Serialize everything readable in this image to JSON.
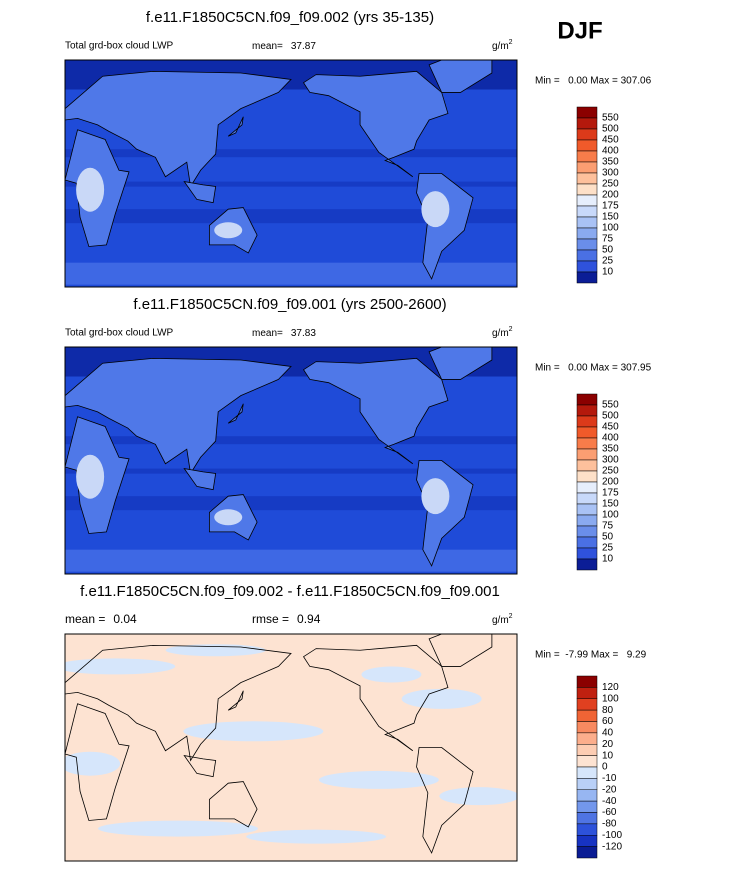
{
  "header": {
    "season": "DJF"
  },
  "panels": [
    {
      "title": "f.e11.F1850C5CN.f09_f09.002 (yrs 35-135)",
      "field": "Total grd-box cloud LWP",
      "stat1_label": "mean=",
      "stat1": "37.87",
      "units": "g/m",
      "units_sup": "2",
      "range": "Min =   0.00 Max = 307.06",
      "style": "lwp",
      "colorbar": {
        "labels": [
          "550",
          "500",
          "450",
          "400",
          "350",
          "300",
          "250",
          "200",
          "175",
          "150",
          "100",
          "75",
          "50",
          "25",
          "10"
        ],
        "colors": [
          "#8b0000",
          "#b4190c",
          "#dc3a1a",
          "#f05a2a",
          "#f87c4a",
          "#fb9e72",
          "#fdc09c",
          "#fde0c8",
          "#e6eefc",
          "#c8d9fa",
          "#a9c2f5",
          "#8aaaf0",
          "#6a8eea",
          "#4a70e4",
          "#2f52dc",
          "#0b1d96"
        ]
      }
    },
    {
      "title": "f.e11.F1850C5CN.f09_f09.001 (yrs 2500-2600)",
      "field": "Total grd-box cloud LWP",
      "stat1_label": "mean=",
      "stat1": "37.83",
      "units": "g/m",
      "units_sup": "2",
      "range": "Min =   0.00 Max = 307.95",
      "style": "lwp",
      "colorbar": {
        "labels": [
          "550",
          "500",
          "450",
          "400",
          "350",
          "300",
          "250",
          "200",
          "175",
          "150",
          "100",
          "75",
          "50",
          "25",
          "10"
        ],
        "colors": [
          "#8b0000",
          "#b4190c",
          "#dc3a1a",
          "#f05a2a",
          "#f87c4a",
          "#fb9e72",
          "#fdc09c",
          "#fde0c8",
          "#e6eefc",
          "#c8d9fa",
          "#a9c2f5",
          "#8aaaf0",
          "#6a8eea",
          "#4a70e4",
          "#2f52dc",
          "#0b1d96"
        ]
      }
    },
    {
      "title": "f.e11.F1850C5CN.f09_f09.002 - f.e11.F1850C5CN.f09_f09.001",
      "stat1_label": "mean =",
      "stat1": "0.04",
      "stat2_label": "rmse =",
      "stat2": "0.94",
      "units": "g/m",
      "units_sup": "2",
      "range": "Min =  -7.99 Max =   9.29",
      "style": "diff",
      "colorbar": {
        "labels": [
          "120",
          "100",
          "80",
          "60",
          "40",
          "20",
          "10",
          "0",
          "-10",
          "-20",
          "-40",
          "-60",
          "-80",
          "-100",
          "-120"
        ],
        "colors": [
          "#8b0000",
          "#c02010",
          "#e04020",
          "#f06435",
          "#f88a60",
          "#fcae8c",
          "#fdcdb3",
          "#fde3d2",
          "#d6e6fb",
          "#b9d0f7",
          "#97b6f2",
          "#7397ec",
          "#4f74e3",
          "#2d52da",
          "#1733c2",
          "#0a1c94"
        ]
      }
    }
  ]
}
